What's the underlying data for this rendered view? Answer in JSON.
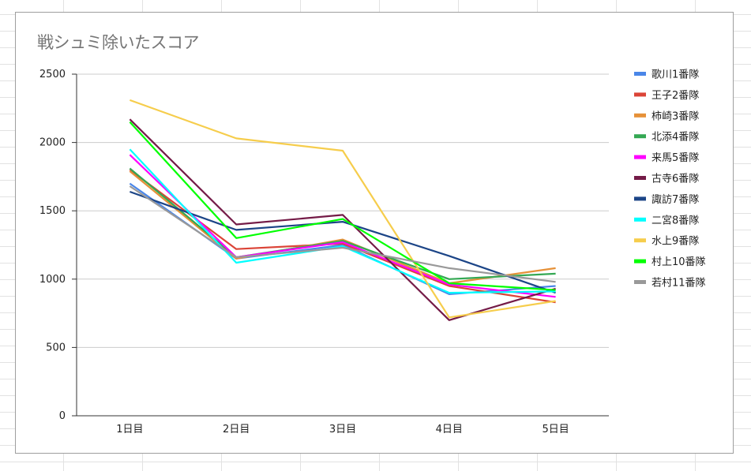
{
  "chart_data": {
    "type": "line",
    "title": "戦シュミ除いたスコア",
    "xlabel": "",
    "ylabel": "",
    "categories": [
      "1日目",
      "2日目",
      "3日目",
      "4日目",
      "5日目"
    ],
    "ylim": [
      0,
      2500
    ],
    "yticks": [
      0,
      500,
      1000,
      1500,
      2000,
      2500
    ],
    "grid": true,
    "legend_position": "right",
    "series": [
      {
        "name": "歌川1番隊",
        "color": "#4a86e8",
        "values": [
          1700,
          1150,
          1250,
          890,
          950
        ]
      },
      {
        "name": "王子2番隊",
        "color": "#db4437",
        "values": [
          1800,
          1220,
          1260,
          950,
          830
        ]
      },
      {
        "name": "柿崎3番隊",
        "color": "#e69138",
        "values": [
          1790,
          1150,
          1290,
          970,
          1080
        ]
      },
      {
        "name": "北添4番隊",
        "color": "#34a853",
        "values": [
          1810,
          1160,
          1280,
          1000,
          1040
        ]
      },
      {
        "name": "来馬5番隊",
        "color": "#ff00ff",
        "values": [
          1910,
          1160,
          1270,
          960,
          870
        ]
      },
      {
        "name": "古寺6番隊",
        "color": "#741b47",
        "values": [
          2170,
          1400,
          1470,
          700,
          930
        ]
      },
      {
        "name": "諏訪7番隊",
        "color": "#1c4587",
        "values": [
          1640,
          1360,
          1420,
          1170,
          900
        ]
      },
      {
        "name": "二宮8番隊",
        "color": "#00ffff",
        "values": [
          1950,
          1120,
          1240,
          900,
          910
        ]
      },
      {
        "name": "水上9番隊",
        "color": "#f6cd4c",
        "values": [
          2310,
          2030,
          1940,
          720,
          840
        ]
      },
      {
        "name": "村上10番隊",
        "color": "#00ff00",
        "values": [
          2150,
          1300,
          1440,
          970,
          920
        ]
      },
      {
        "name": "若村11番隊",
        "color": "#999999",
        "values": [
          1680,
          1160,
          1230,
          1080,
          980
        ]
      }
    ]
  }
}
